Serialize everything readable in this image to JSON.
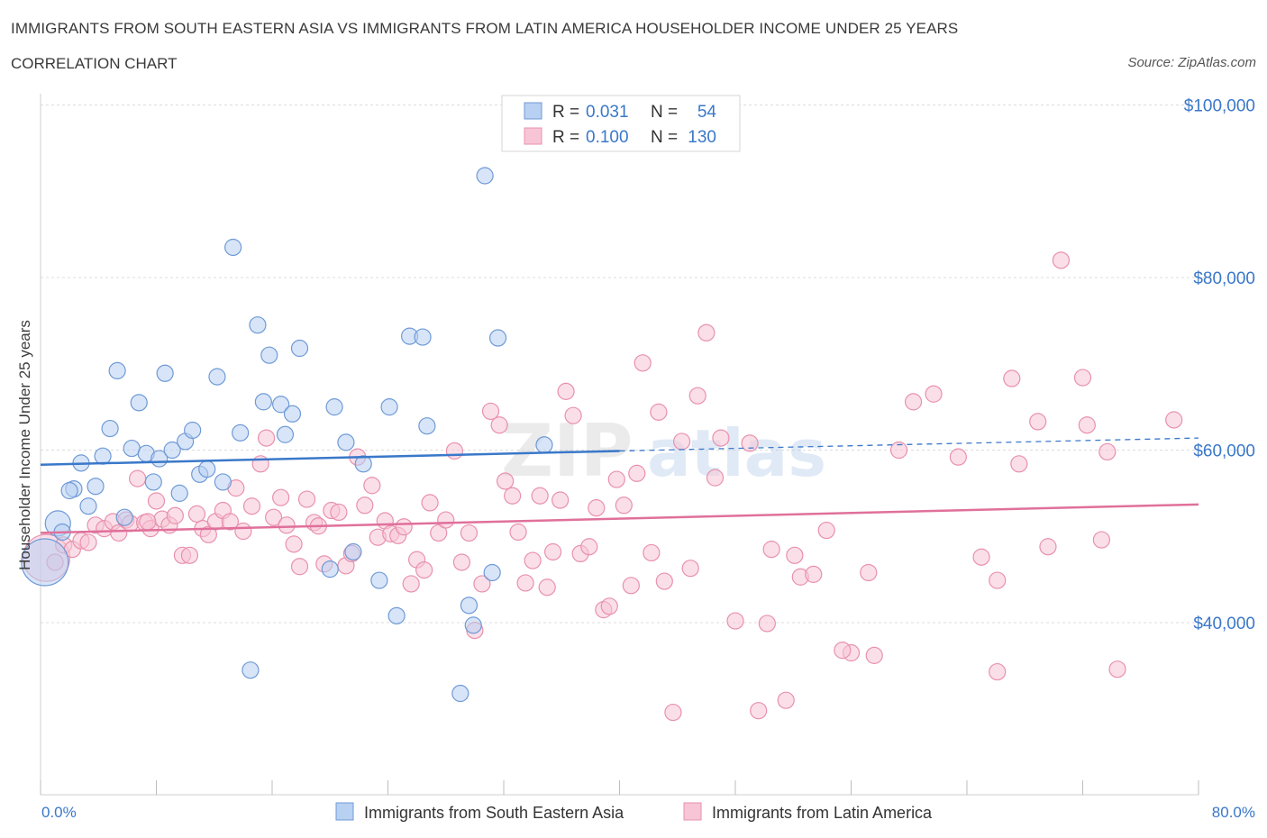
{
  "header": {
    "title": "IMMIGRANTS FROM SOUTH EASTERN ASIA VS IMMIGRANTS FROM LATIN AMERICA HOUSEHOLDER INCOME UNDER 25 YEARS",
    "subtitle": "CORRELATION CHART",
    "source": "Source: ZipAtlas.com"
  },
  "watermark": "ZIPatlas",
  "stats": [
    {
      "r_label": "R = ",
      "r_value": "0.031",
      "n_label": "N = ",
      "n_value": "54"
    },
    {
      "r_label": "R = ",
      "r_value": "0.100",
      "n_label": "N = ",
      "n_value": "130"
    }
  ],
  "colors": {
    "blue_fill": "#b8d0f2",
    "blue_stroke": "#6f9ad6",
    "blue_line": "#3a78c9",
    "pink_fill": "#f7c5d6",
    "pink_stroke": "#e891ad",
    "pink_line": "#e0709a",
    "value_text": "#3a78c9",
    "grid": "#dcdcdc"
  },
  "chart_data": {
    "type": "scatter",
    "title": "IMMIGRANTS FROM SOUTH EASTERN ASIA VS IMMIGRANTS FROM LATIN AMERICA HOUSEHOLDER INCOME UNDER 25 YEARS",
    "xlabel": "",
    "ylabel": "Householder Income Under 25 years",
    "xlim": [
      0,
      80
    ],
    "ylim": [
      20000,
      100000
    ],
    "x_tick_labels": [
      "0.0%",
      "80.0%"
    ],
    "y_ticks": [
      40000,
      60000,
      80000,
      100000
    ],
    "y_tick_labels": [
      "$40,000",
      "$60,000",
      "$80,000",
      "$100,000"
    ],
    "grid": true,
    "legend_position": "bottom",
    "series": [
      {
        "name": "Immigrants from South Eastern Asia",
        "color": "blue",
        "trend": {
          "x_start": 0,
          "y_start": 58300,
          "x_end": 40,
          "y_end": 59900,
          "dashed_to_x": 80,
          "dashed_to_y": 61400
        },
        "points": [
          [
            0.3,
            47000,
            "large"
          ],
          [
            1.2,
            51500,
            "mid"
          ],
          [
            1.5,
            50500
          ],
          [
            2.3,
            55500
          ],
          [
            2.8,
            58500
          ],
          [
            3.3,
            53500
          ],
          [
            3.8,
            55800
          ],
          [
            4.3,
            59300
          ],
          [
            4.8,
            62500
          ],
          [
            5.3,
            69200
          ],
          [
            5.8,
            52200
          ],
          [
            6.3,
            60200
          ],
          [
            6.8,
            65500
          ],
          [
            7.3,
            59600
          ],
          [
            7.8,
            56300
          ],
          [
            8.2,
            59000
          ],
          [
            8.6,
            68900
          ],
          [
            9.1,
            60000
          ],
          [
            9.6,
            55000
          ],
          [
            10.0,
            61000
          ],
          [
            10.5,
            62300
          ],
          [
            11.0,
            57200
          ],
          [
            11.5,
            57800
          ],
          [
            12.2,
            68500
          ],
          [
            12.6,
            56300
          ],
          [
            13.3,
            83500
          ],
          [
            13.8,
            62000
          ],
          [
            14.5,
            34500
          ],
          [
            15.0,
            74500
          ],
          [
            15.4,
            65600
          ],
          [
            15.8,
            71000
          ],
          [
            16.6,
            65300
          ],
          [
            16.9,
            61800
          ],
          [
            17.4,
            64200
          ],
          [
            17.9,
            71800
          ],
          [
            20.3,
            65000
          ],
          [
            20.0,
            46200
          ],
          [
            21.1,
            60900
          ],
          [
            22.3,
            58400
          ],
          [
            21.6,
            48200
          ],
          [
            23.4,
            44900
          ],
          [
            24.1,
            65000
          ],
          [
            24.6,
            40800
          ],
          [
            25.5,
            73200
          ],
          [
            26.4,
            73100
          ],
          [
            26.7,
            62800
          ],
          [
            29.0,
            31800
          ],
          [
            29.6,
            42000
          ],
          [
            29.9,
            39700
          ],
          [
            30.7,
            91800
          ],
          [
            31.2,
            45800
          ],
          [
            31.6,
            73000
          ],
          [
            34.8,
            60600
          ],
          [
            2.0,
            55300
          ]
        ]
      },
      {
        "name": "Immigrants from Latin America",
        "color": "pink",
        "trend": {
          "x_start": 0,
          "y_start": 50400,
          "x_end": 80,
          "y_end": 53700
        },
        "points": [
          [
            0.4,
            47500,
            "large"
          ],
          [
            1.0,
            47000
          ],
          [
            1.6,
            49000
          ],
          [
            2.2,
            48500
          ],
          [
            2.8,
            49500
          ],
          [
            3.3,
            49300
          ],
          [
            3.8,
            51300
          ],
          [
            4.4,
            50900
          ],
          [
            5.0,
            51700
          ],
          [
            5.4,
            50400
          ],
          [
            5.9,
            51900
          ],
          [
            6.2,
            51500
          ],
          [
            6.7,
            56700
          ],
          [
            7.2,
            51600
          ],
          [
            7.6,
            50900
          ],
          [
            8.0,
            54100
          ],
          [
            8.4,
            52000
          ],
          [
            8.9,
            51300
          ],
          [
            9.3,
            52400
          ],
          [
            9.8,
            47800
          ],
          [
            10.3,
            47800
          ],
          [
            10.8,
            52600
          ],
          [
            11.2,
            50900
          ],
          [
            11.6,
            50200
          ],
          [
            12.1,
            51700
          ],
          [
            12.6,
            53000
          ],
          [
            13.1,
            51700
          ],
          [
            13.5,
            55600
          ],
          [
            14.0,
            50600
          ],
          [
            14.6,
            53500
          ],
          [
            15.2,
            58400
          ],
          [
            15.6,
            61400
          ],
          [
            16.1,
            52200
          ],
          [
            16.6,
            54500
          ],
          [
            17.0,
            51300
          ],
          [
            17.5,
            49100
          ],
          [
            17.9,
            46500
          ],
          [
            18.4,
            54300
          ],
          [
            18.9,
            51600
          ],
          [
            19.2,
            51200
          ],
          [
            19.6,
            46800
          ],
          [
            20.1,
            53000
          ],
          [
            20.6,
            52800
          ],
          [
            21.1,
            46600
          ],
          [
            21.5,
            48000
          ],
          [
            21.9,
            59200
          ],
          [
            22.4,
            53600
          ],
          [
            22.9,
            55900
          ],
          [
            23.3,
            49900
          ],
          [
            23.8,
            51800
          ],
          [
            24.2,
            50300
          ],
          [
            24.7,
            50100
          ],
          [
            25.1,
            51100
          ],
          [
            25.6,
            44500
          ],
          [
            26.0,
            47300
          ],
          [
            26.5,
            46100
          ],
          [
            26.9,
            53900
          ],
          [
            27.5,
            50400
          ],
          [
            28.0,
            51900
          ],
          [
            28.6,
            59900
          ],
          [
            29.1,
            47000
          ],
          [
            29.6,
            50400
          ],
          [
            30.0,
            39100
          ],
          [
            30.5,
            44500
          ],
          [
            31.1,
            64500
          ],
          [
            31.7,
            62900
          ],
          [
            32.1,
            56400
          ],
          [
            32.6,
            54700
          ],
          [
            33.0,
            50500
          ],
          [
            33.5,
            44600
          ],
          [
            34.0,
            47200
          ],
          [
            34.5,
            54700
          ],
          [
            35.0,
            44100
          ],
          [
            35.4,
            48200
          ],
          [
            35.9,
            54200
          ],
          [
            36.3,
            66800
          ],
          [
            36.8,
            64000
          ],
          [
            37.3,
            48000
          ],
          [
            37.9,
            48800
          ],
          [
            38.4,
            53300
          ],
          [
            38.9,
            41500
          ],
          [
            39.3,
            41900
          ],
          [
            39.8,
            56600
          ],
          [
            40.3,
            53600
          ],
          [
            40.8,
            44300
          ],
          [
            41.2,
            57300
          ],
          [
            41.6,
            70100
          ],
          [
            42.2,
            48100
          ],
          [
            42.7,
            64400
          ],
          [
            43.1,
            44800
          ],
          [
            43.7,
            29600
          ],
          [
            44.3,
            61000
          ],
          [
            44.9,
            46300
          ],
          [
            45.4,
            66300
          ],
          [
            46.0,
            73600
          ],
          [
            46.6,
            56800
          ],
          [
            47.0,
            61400
          ],
          [
            48.0,
            40200
          ],
          [
            49.0,
            60800
          ],
          [
            49.6,
            29800
          ],
          [
            50.2,
            39900
          ],
          [
            50.5,
            48500
          ],
          [
            51.5,
            31000
          ],
          [
            52.1,
            47800
          ],
          [
            52.5,
            45300
          ],
          [
            53.4,
            45600
          ],
          [
            54.3,
            50700
          ],
          [
            56.0,
            36500
          ],
          [
            55.4,
            36800
          ],
          [
            57.2,
            45800
          ],
          [
            57.6,
            36200
          ],
          [
            59.3,
            60000
          ],
          [
            60.3,
            65600
          ],
          [
            61.7,
            66500
          ],
          [
            63.4,
            59200
          ],
          [
            65.0,
            47600
          ],
          [
            66.1,
            44900
          ],
          [
            66.1,
            34300
          ],
          [
            67.1,
            68300
          ],
          [
            67.6,
            58400
          ],
          [
            68.9,
            63300
          ],
          [
            69.6,
            48800
          ],
          [
            70.5,
            82000
          ],
          [
            72.0,
            68400
          ],
          [
            72.3,
            62900
          ],
          [
            73.3,
            49600
          ],
          [
            73.7,
            59800
          ],
          [
            74.4,
            34600
          ],
          [
            78.3,
            63500
          ],
          [
            7.4,
            51700
          ]
        ]
      }
    ]
  },
  "legend": [
    {
      "label": "Immigrants from South Eastern Asia",
      "color": "blue"
    },
    {
      "label": "Immigrants from Latin America",
      "color": "pink"
    }
  ]
}
